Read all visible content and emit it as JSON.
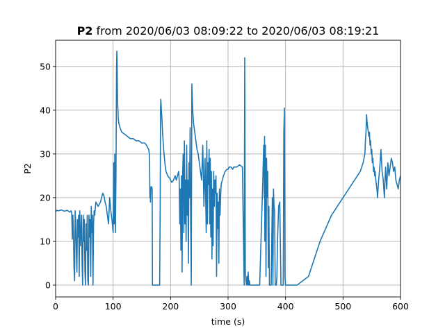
{
  "chart_data": {
    "type": "line",
    "title": {
      "bold": "P2",
      "rest": " from 2020/06/03 08:09:22 to 2020/06/03 08:19:21"
    },
    "xlabel": "time (s)",
    "ylabel": "P2",
    "xlim": [
      0,
      600
    ],
    "ylim": [
      -2.7,
      56
    ],
    "xticks": [
      0,
      100,
      200,
      300,
      400,
      500,
      600
    ],
    "yticks": [
      0,
      10,
      20,
      30,
      40,
      50
    ],
    "grid": true,
    "color": "#1f77b4",
    "series": [
      {
        "x": [
          0,
          2,
          5,
          10,
          15,
          20,
          25,
          27,
          28,
          29,
          30,
          31,
          32,
          33,
          34,
          35,
          36,
          37,
          38,
          39,
          40,
          41,
          42,
          43,
          44,
          45,
          46,
          47,
          48,
          49,
          50,
          51,
          52,
          53,
          54,
          55,
          56,
          57,
          58,
          59,
          60,
          61,
          62,
          63,
          64,
          65,
          66,
          67,
          68,
          70,
          72,
          74,
          76,
          78,
          80,
          82,
          84,
          86,
          88,
          90,
          92,
          94,
          96,
          98,
          100,
          101,
          102,
          103,
          104,
          105,
          106,
          106.5,
          107,
          107.5,
          108,
          108.5,
          109,
          110,
          112,
          115,
          120,
          125,
          130,
          135,
          140,
          145,
          150,
          155,
          158,
          160,
          162,
          163,
          163.5,
          164,
          164.5,
          165,
          166,
          167,
          168,
          168.5,
          169,
          172,
          175,
          178,
          180,
          181,
          182,
          182.5,
          183,
          184,
          185,
          186,
          188,
          190,
          192,
          195,
          198,
          200,
          202,
          205,
          208,
          210,
          212,
          214,
          215,
          216,
          217,
          218,
          219,
          220,
          221,
          222,
          223,
          224,
          225,
          226,
          227,
          228,
          229,
          230,
          231,
          232,
          233,
          234,
          235,
          236,
          237,
          238,
          238.5,
          239,
          239.5,
          240,
          241,
          242,
          244,
          246,
          248,
          250,
          252,
          254,
          256,
          258,
          260,
          262,
          263,
          264,
          265,
          266,
          267,
          268,
          269,
          270,
          271,
          272,
          273,
          274,
          275,
          276,
          277,
          278,
          279,
          280,
          281,
          282,
          283,
          284,
          285,
          286,
          287,
          288,
          290,
          292,
          295,
          298,
          300,
          302,
          305,
          308,
          310,
          315,
          320,
          325,
          328,
          329,
          329.5,
          330,
          331,
          332,
          333,
          334,
          335,
          336,
          337,
          338,
          339,
          340,
          345,
          350,
          355,
          360,
          362,
          363,
          363.5,
          364,
          365,
          366,
          367,
          368,
          369,
          370,
          371,
          372,
          373,
          374,
          375,
          376,
          377,
          378,
          379,
          380,
          381,
          382,
          383,
          384,
          385,
          386,
          388,
          390,
          392,
          395,
          396,
          397,
          398,
          399,
          400,
          401,
          402,
          402.5,
          403,
          403.5,
          404,
          405,
          410,
          420,
          440,
          460,
          480,
          500,
          520,
          530,
          535,
          538,
          539,
          540,
          541,
          542,
          543,
          545,
          546,
          547,
          548,
          549,
          550,
          551,
          552,
          553,
          554,
          555,
          556,
          557,
          558,
          559,
          560,
          562,
          564,
          566,
          568,
          570,
          572,
          574,
          576,
          578,
          580,
          582,
          584,
          586,
          588,
          590,
          592,
          594,
          596,
          598,
          600
        ],
        "y": [
          16.8,
          17.1,
          17,
          17.2,
          16.9,
          17.1,
          16.7,
          17,
          16.5,
          10.5,
          16,
          12,
          4,
          1,
          17,
          14,
          8,
          3,
          15,
          11,
          16,
          2,
          17,
          9,
          12,
          16,
          5,
          0,
          16,
          10,
          15,
          3,
          0,
          14,
          8,
          16,
          1,
          0,
          16,
          11,
          15,
          2,
          18,
          12,
          16,
          0,
          14,
          17,
          16,
          19,
          18.5,
          18,
          18.5,
          19,
          20,
          21,
          20.5,
          19,
          18,
          16,
          14,
          20,
          17,
          15,
          12,
          28,
          14,
          30,
          12,
          25,
          50,
          53.5,
          51,
          44,
          41,
          40,
          38,
          37,
          36,
          35,
          34.5,
          34,
          33.5,
          33.5,
          33,
          33,
          32.5,
          32.5,
          32,
          31.5,
          31,
          30,
          28,
          20,
          22,
          19,
          22.5,
          22.5,
          22,
          0,
          0,
          0,
          0,
          0,
          0,
          0,
          20,
          40,
          42.5,
          40,
          38,
          35,
          31,
          28,
          26,
          25,
          24.5,
          24,
          23.5,
          24,
          25,
          24,
          25,
          26,
          24,
          14,
          22,
          8,
          25,
          3,
          26,
          30,
          12,
          33,
          14,
          24,
          10,
          32,
          16,
          24,
          5,
          28,
          20,
          36,
          14,
          0,
          46,
          42,
          40,
          39,
          38,
          37,
          36,
          35,
          33,
          31,
          30,
          28,
          26,
          24,
          32,
          18,
          29,
          12,
          33,
          14,
          28,
          23,
          31,
          14,
          29,
          11,
          26,
          6,
          22,
          9,
          26,
          18,
          24,
          21,
          25,
          2,
          21,
          13,
          19,
          5,
          22,
          16,
          20,
          23,
          24,
          25,
          26,
          26.5,
          26.5,
          27,
          27,
          26.5,
          27,
          27,
          27.5,
          27,
          0,
          52,
          30,
          4,
          1,
          0,
          2,
          0,
          3,
          0,
          1,
          0,
          0,
          0,
          0,
          0,
          0,
          22,
          32,
          20,
          34,
          10,
          32,
          2,
          29,
          20,
          26,
          4,
          18,
          0,
          0,
          0,
          0,
          10,
          20,
          0,
          22,
          18,
          17,
          0,
          0,
          0,
          2,
          10,
          18,
          19,
          0,
          0,
          0,
          35,
          40.5,
          2,
          0,
          0,
          0,
          0,
          0,
          0,
          0,
          0,
          0,
          0,
          2,
          10,
          16,
          20,
          24,
          26,
          28,
          30,
          33,
          35,
          39,
          37,
          36,
          34,
          35,
          32,
          33,
          30,
          31,
          28,
          29,
          26,
          27,
          25,
          26,
          24,
          23,
          22,
          20,
          24,
          27,
          31,
          26,
          24,
          20,
          27,
          22,
          28,
          25,
          27,
          29,
          28,
          26,
          27,
          24,
          23,
          22,
          24,
          25
        ]
      }
    ]
  }
}
